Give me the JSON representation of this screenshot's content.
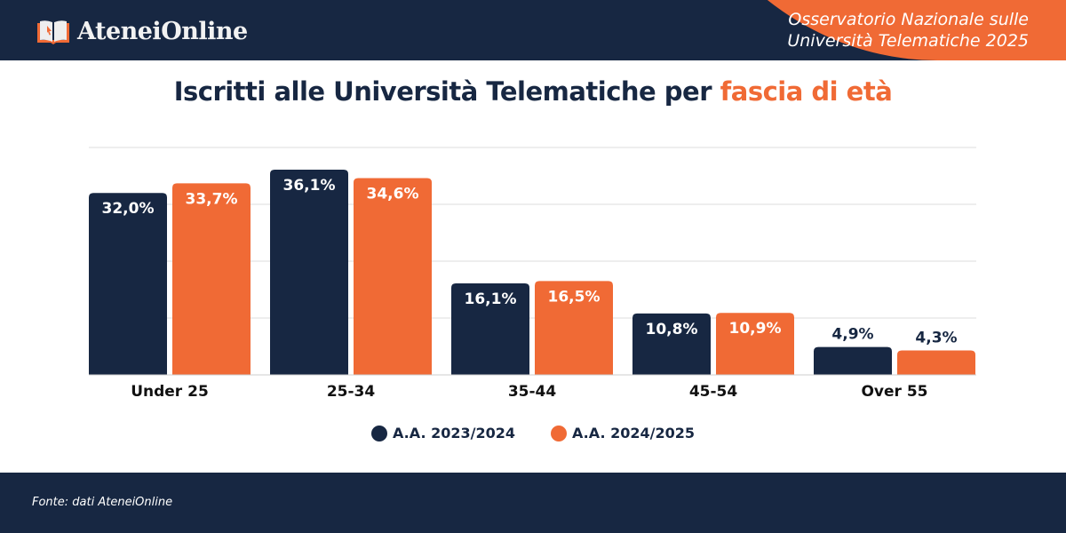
{
  "header": {
    "brand": "AteneiOnline",
    "subtitle_line1": "Osservatorio Nazionale sulle",
    "subtitle_line2": "Università Telematiche 2025"
  },
  "title": {
    "main": "Iscritti alle Università Telematiche per ",
    "accent": "fascia di età"
  },
  "chart_data": {
    "type": "bar",
    "categories": [
      "Under 25",
      "25-34",
      "35-44",
      "45-54",
      "Over 55"
    ],
    "series": [
      {
        "name": "A.A. 2023/2024",
        "values": [
          32.0,
          36.1,
          16.1,
          10.8,
          4.9
        ],
        "labels": [
          "32,0%",
          "36,1%",
          "16,1%",
          "10,8%",
          "4,9%"
        ],
        "color": "#172742"
      },
      {
        "name": "A.A. 2024/2025",
        "values": [
          33.7,
          34.6,
          16.5,
          10.9,
          4.3
        ],
        "labels": [
          "33,7%",
          "34,6%",
          "16,5%",
          "10,9%",
          "4,3%"
        ],
        "color": "#f06a35"
      }
    ],
    "ylim": [
      0,
      40
    ],
    "grid": true,
    "legend": "bottom"
  },
  "footer": {
    "source": "Fonte: dati AteneiOnline"
  }
}
